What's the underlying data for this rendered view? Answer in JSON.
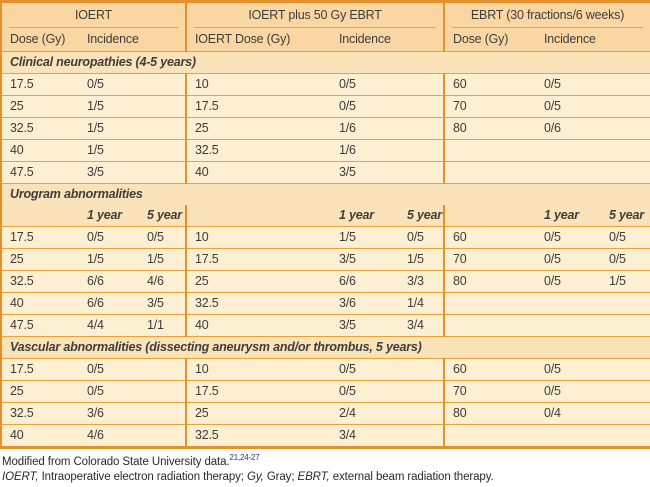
{
  "colors": {
    "line": "#E8A33C",
    "border": "#E2912D",
    "header_bg": "#FAD7A2",
    "section_bg": "#FBE3B9",
    "row_bg": "#FDEFD1",
    "text": "#3D3D3D",
    "ref": "#283583"
  },
  "table": {
    "groups": [
      {
        "label": "IOERT",
        "dose_header": "Dose (Gy)",
        "incidence_header": "Incidence"
      },
      {
        "label": "IOERT plus 50 Gy EBRT",
        "dose_header": "IOERT Dose (Gy)",
        "incidence_header": "Incidence"
      },
      {
        "label": "EBRT (30 fractions/6 weeks)",
        "dose_header": "Dose (Gy)",
        "incidence_header": "Incidence"
      }
    ],
    "subheader_labels": [
      "1 year",
      "5 year"
    ],
    "sections": [
      {
        "title": "Clinical neuropathies (4-5 years)",
        "has_subheader": false,
        "rows": [
          [
            "17.5",
            "0/5",
            "",
            "10",
            "0/5",
            "",
            "60",
            "0/5",
            ""
          ],
          [
            "25",
            "1/5",
            "",
            "17.5",
            "0/5",
            "",
            "70",
            "0/5",
            ""
          ],
          [
            "32.5",
            "1/5",
            "",
            "25",
            "1/6",
            "",
            "80",
            "0/6",
            ""
          ],
          [
            "40",
            "1/5",
            "",
            "32.5",
            "1/6",
            "",
            "",
            "",
            ""
          ],
          [
            "47.5",
            "3/5",
            "",
            "40",
            "3/5",
            "",
            "",
            "",
            ""
          ]
        ]
      },
      {
        "title": "Urogram abnormalities",
        "has_subheader": true,
        "rows": [
          [
            "17.5",
            "0/5",
            "0/5",
            "10",
            "1/5",
            "0/5",
            "60",
            "0/5",
            "0/5"
          ],
          [
            "25",
            "1/5",
            "1/5",
            "17.5",
            "3/5",
            "1/5",
            "70",
            "0/5",
            "0/5"
          ],
          [
            "32.5",
            "6/6",
            "4/6",
            "25",
            "6/6",
            "3/3",
            "80",
            "0/5",
            "1/5"
          ],
          [
            "40",
            "6/6",
            "3/5",
            "32.5",
            "3/6",
            "1/4",
            "",
            "",
            ""
          ],
          [
            "47.5",
            "4/4",
            "1/1",
            "40",
            "3/5",
            "3/4",
            "",
            "",
            ""
          ]
        ]
      },
      {
        "title": "Vascular abnormalities (dissecting aneurysm and/or thrombus, 5 years)",
        "has_subheader": false,
        "rows": [
          [
            "17.5",
            "0/5",
            "",
            "10",
            "0/5",
            "",
            "60",
            "0/5",
            ""
          ],
          [
            "25",
            "0/5",
            "",
            "17.5",
            "0/5",
            "",
            "70",
            "0/5",
            ""
          ],
          [
            "32.5",
            "3/6",
            "",
            "25",
            "2/4",
            "",
            "80",
            "0/4",
            ""
          ],
          [
            "40",
            "4/6",
            "",
            "32.5",
            "3/4",
            "",
            "",
            "",
            ""
          ]
        ]
      }
    ]
  },
  "footnotes": {
    "source": "Modified from Colorado State University data.",
    "source_refs": "21,24-27",
    "abbreviations": [
      {
        "text": "IOERT,",
        "italic": true
      },
      {
        "text": " Intraoperative electron radiation therapy; ",
        "italic": false
      },
      {
        "text": "Gy,",
        "italic": true
      },
      {
        "text": " Gray; ",
        "italic": false
      },
      {
        "text": "EBRT,",
        "italic": true
      },
      {
        "text": " external beam radiation therapy.",
        "italic": false
      }
    ]
  }
}
